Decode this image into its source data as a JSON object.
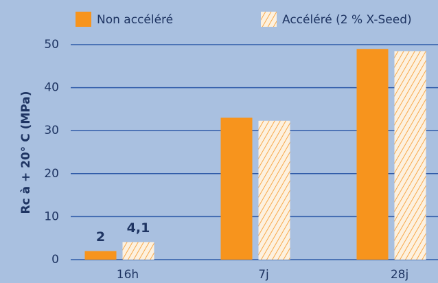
{
  "chart_data": {
    "type": "bar",
    "y_label": "Rc à + 20° C (MPa)",
    "categories": [
      "16h",
      "7j",
      "28j"
    ],
    "series": [
      {
        "name": "Non accéléré",
        "color": "#f7941d",
        "values": [
          2,
          33,
          49
        ],
        "value_labels": [
          "2",
          null,
          null
        ]
      },
      {
        "name": "Accéléré (2 % X-Seed)",
        "color": "#f7941d",
        "pattern": "hatch",
        "values": [
          4.1,
          32.3,
          48.5
        ],
        "value_labels": [
          "4,1",
          null,
          null
        ]
      }
    ],
    "ylim": [
      0,
      50
    ],
    "yticks": [
      0,
      10,
      20,
      30,
      40,
      50
    ],
    "grid": true
  }
}
